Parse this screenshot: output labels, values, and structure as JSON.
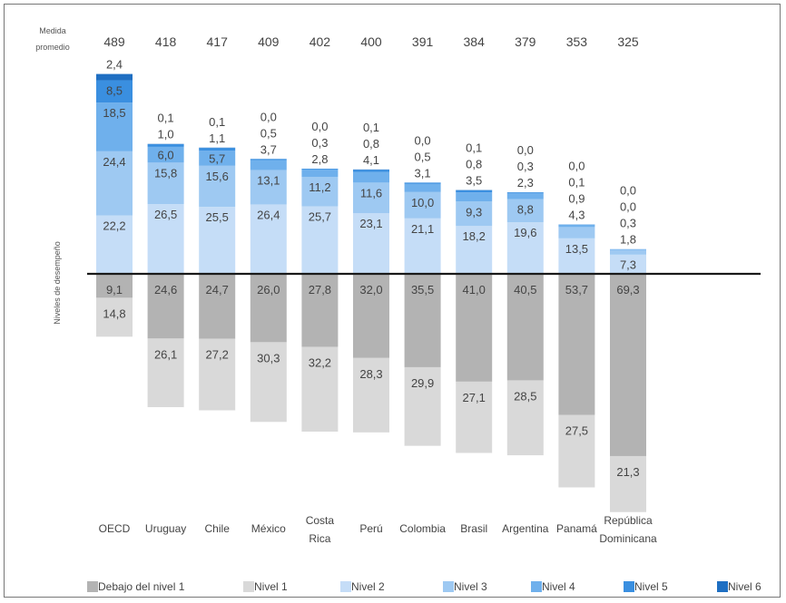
{
  "chart_data": {
    "type": "bar",
    "stacked": "diverging",
    "average_label_lines": [
      "Medida",
      "promedio"
    ],
    "ylabel": "Niveles de desempeño",
    "categories": [
      {
        "label_lines": [
          "OECD"
        ],
        "score": "489"
      },
      {
        "label_lines": [
          "Uruguay"
        ],
        "score": "418"
      },
      {
        "label_lines": [
          "Chile"
        ],
        "score": "417"
      },
      {
        "label_lines": [
          "México"
        ],
        "score": "409"
      },
      {
        "label_lines": [
          "Costa",
          "Rica"
        ],
        "score": "402"
      },
      {
        "label_lines": [
          "Perú"
        ],
        "score": "400"
      },
      {
        "label_lines": [
          "Colombia"
        ],
        "score": "391"
      },
      {
        "label_lines": [
          "Brasil"
        ],
        "score": "384"
      },
      {
        "label_lines": [
          "Argentina"
        ],
        "score": "379"
      },
      {
        "label_lines": [
          "Panamá"
        ],
        "score": "353"
      },
      {
        "label_lines": [
          "República",
          "Dominicana"
        ],
        "score": "325"
      }
    ],
    "series": [
      {
        "name": "Debajo del nivel 1",
        "color": "#b3b3b3",
        "direction": "below",
        "values": [
          9.1,
          24.6,
          24.7,
          26.0,
          27.8,
          32.0,
          35.5,
          41.0,
          40.5,
          53.7,
          69.3
        ],
        "labels": [
          "9,1",
          "24,6",
          "24,7",
          "26,0",
          "27,8",
          "32,0",
          "35,5",
          "41,0",
          "40,5",
          "53,7",
          "69,3"
        ]
      },
      {
        "name": "Nivel 1",
        "color": "#d9d9d9",
        "direction": "below",
        "values": [
          14.8,
          26.1,
          27.2,
          30.3,
          32.2,
          28.3,
          29.9,
          27.1,
          28.5,
          27.5,
          21.3
        ],
        "labels": [
          "14,8",
          "26,1",
          "27,2",
          "30,3",
          "32,2",
          "28,3",
          "29,9",
          "27,1",
          "28,5",
          "27,5",
          "21,3"
        ]
      },
      {
        "name": "Nivel 2",
        "color": "#c5ddf7",
        "direction": "above",
        "values": [
          22.2,
          26.5,
          25.5,
          26.4,
          25.7,
          23.1,
          21.1,
          18.2,
          19.6,
          13.5,
          7.3
        ],
        "labels": [
          "22,2",
          "26,5",
          "25,5",
          "26,4",
          "25,7",
          "23,1",
          "21,1",
          "18,2",
          "19,6",
          "13,5",
          "7,3"
        ]
      },
      {
        "name": "Nivel 3",
        "color": "#9ec9f2",
        "direction": "above",
        "values": [
          24.4,
          15.8,
          15.6,
          13.1,
          11.2,
          11.6,
          10.0,
          9.3,
          8.8,
          4.3,
          1.8
        ],
        "labels": [
          "24,4",
          "15,8",
          "15,6",
          "13,1",
          "11,2",
          "11,6",
          "10,0",
          "9,3",
          "8,8",
          "4,3",
          "1,8"
        ]
      },
      {
        "name": "Nivel 4",
        "color": "#6fb0ec",
        "direction": "above",
        "values": [
          18.5,
          6.0,
          5.7,
          3.7,
          2.8,
          4.1,
          3.1,
          3.5,
          2.3,
          0.9,
          0.3
        ],
        "labels": [
          "18,5",
          "6,0",
          "5,7",
          "3,7",
          "2,8",
          "4,1",
          "3,1",
          "3,5",
          "2,3",
          "0,9",
          "0,3"
        ]
      },
      {
        "name": "Nivel 5",
        "color": "#3a8fe0",
        "direction": "above",
        "values": [
          8.5,
          1.0,
          1.1,
          0.5,
          0.3,
          0.8,
          0.5,
          0.8,
          0.3,
          0.1,
          0.0
        ],
        "labels": [
          "8,5",
          "1,0",
          "1,1",
          "0,5",
          "0,3",
          "0,8",
          "0,5",
          "0,8",
          "0,3",
          "0,1",
          "0,0"
        ]
      },
      {
        "name": "Nivel 6",
        "color": "#1f6fc2",
        "direction": "above",
        "values": [
          2.4,
          0.1,
          0.1,
          0.0,
          0.0,
          0.1,
          0.0,
          0.1,
          0.0,
          0.0,
          0.0
        ],
        "labels": [
          "2,4",
          "0,1",
          "0,1",
          "0,0",
          "0,0",
          "0,1",
          "0,0",
          "0,1",
          "0,0",
          "0,0",
          "0,0"
        ]
      }
    ],
    "legend": "bottom",
    "grid": false
  }
}
